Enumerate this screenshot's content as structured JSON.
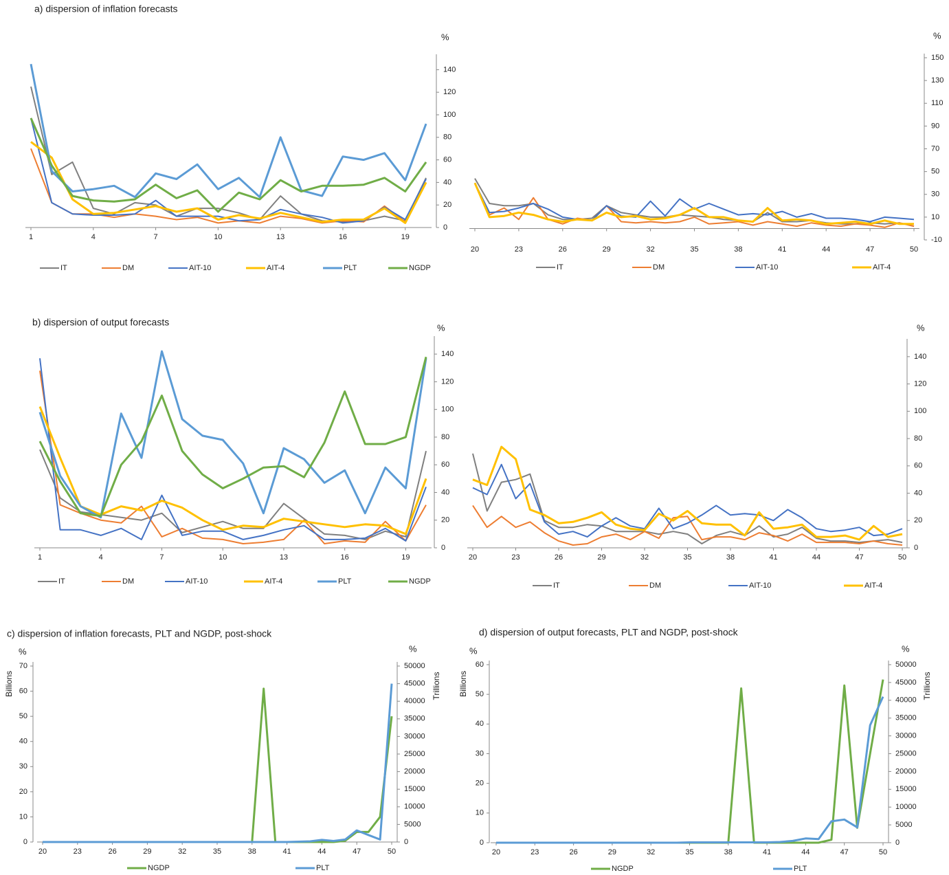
{
  "chart_data": [
    {
      "type": "line",
      "title": "a) dispersion of inflation forecasts",
      "y_unit": "%",
      "x": [
        1,
        2,
        3,
        4,
        5,
        6,
        7,
        8,
        9,
        10,
        11,
        12,
        13,
        14,
        15,
        16,
        17,
        18,
        19,
        20
      ],
      "xticks": [
        1,
        4,
        7,
        10,
        13,
        16,
        19
      ],
      "ylim": [
        0,
        150
      ],
      "yticks": [
        0,
        20,
        40,
        60,
        80,
        100,
        120,
        140
      ],
      "series": [
        {
          "name": "IT",
          "color": "#7f7f7f",
          "values": [
            125,
            47,
            58,
            17,
            12,
            22,
            20,
            10,
            17,
            17,
            13,
            7,
            28,
            12,
            6,
            5,
            6,
            10,
            6,
            44
          ]
        },
        {
          "name": "DM",
          "color": "#ed7d31",
          "values": [
            70,
            22,
            12,
            12,
            9,
            12,
            10,
            7,
            9,
            4,
            6,
            4,
            10,
            8,
            4,
            6,
            5,
            19,
            5,
            40
          ]
        },
        {
          "name": "AIT-10",
          "color": "#4472c4",
          "values": [
            97,
            22,
            12,
            11,
            11,
            12,
            24,
            10,
            10,
            10,
            6,
            7,
            16,
            12,
            9,
            4,
            6,
            18,
            7,
            43
          ]
        },
        {
          "name": "AIT-4",
          "color": "#ffc000",
          "values": [
            76,
            62,
            25,
            12,
            13,
            16,
            19,
            14,
            17,
            7,
            11,
            8,
            13,
            9,
            5,
            7,
            7,
            17,
            4,
            40
          ]
        },
        {
          "name": "PLT",
          "color": "#5b9bd5",
          "values": [
            145,
            50,
            32,
            34,
            37,
            27,
            48,
            43,
            56,
            34,
            44,
            27,
            80,
            33,
            28,
            63,
            60,
            66,
            42,
            92
          ]
        },
        {
          "name": "NGDP",
          "color": "#70ad47",
          "values": [
            97,
            55,
            28,
            24,
            23,
            25,
            38,
            26,
            33,
            14,
            31,
            25,
            42,
            32,
            37,
            37,
            38,
            44,
            32,
            58
          ]
        }
      ]
    },
    {
      "type": "line",
      "y_unit": "%",
      "x": [
        20,
        21,
        22,
        23,
        24,
        25,
        26,
        27,
        28,
        29,
        30,
        31,
        32,
        33,
        34,
        35,
        36,
        37,
        38,
        39,
        40,
        41,
        42,
        43,
        44,
        45,
        46,
        47,
        48,
        49,
        50
      ],
      "xticks": [
        20,
        23,
        26,
        29,
        32,
        35,
        38,
        41,
        44,
        47,
        50
      ],
      "ylim": [
        -10,
        150
      ],
      "yticks": [
        -10,
        10,
        30,
        50,
        70,
        90,
        110,
        130,
        150
      ],
      "series": [
        {
          "name": "IT",
          "color": "#7f7f7f",
          "values": [
            44,
            22,
            20,
            20,
            22,
            12,
            8,
            8,
            9,
            20,
            14,
            12,
            10,
            10,
            12,
            11,
            10,
            8,
            7,
            6,
            14,
            6,
            6,
            7,
            5,
            4,
            4,
            5,
            4,
            5,
            2
          ]
        },
        {
          "name": "DM",
          "color": "#ed7d31",
          "values": [
            40,
            12,
            18,
            8,
            27,
            8,
            4,
            9,
            7,
            20,
            6,
            5,
            6,
            5,
            6,
            10,
            4,
            5,
            6,
            3,
            6,
            4,
            2,
            5,
            3,
            2,
            4,
            3,
            1,
            5,
            2
          ]
        },
        {
          "name": "AIT-10",
          "color": "#4472c4",
          "values": [
            40,
            14,
            15,
            18,
            22,
            17,
            10,
            8,
            7,
            20,
            11,
            10,
            24,
            11,
            26,
            17,
            22,
            17,
            12,
            13,
            12,
            15,
            10,
            13,
            9,
            9,
            8,
            6,
            10,
            9,
            8
          ]
        },
        {
          "name": "AIT-4",
          "color": "#ffc000",
          "values": [
            40,
            10,
            11,
            14,
            12,
            8,
            6,
            8,
            7,
            14,
            10,
            11,
            8,
            9,
            12,
            18,
            10,
            10,
            7,
            6,
            18,
            7,
            8,
            7,
            4,
            5,
            6,
            4,
            7,
            4,
            4
          ]
        }
      ]
    },
    {
      "type": "line",
      "title": "b) dispersion of output forecasts",
      "y_unit": "%",
      "x": [
        1,
        2,
        3,
        4,
        5,
        6,
        7,
        8,
        9,
        10,
        11,
        12,
        13,
        14,
        15,
        16,
        17,
        18,
        19,
        20
      ],
      "xticks": [
        1,
        4,
        7,
        10,
        13,
        16,
        19
      ],
      "ylim": [
        0,
        150
      ],
      "yticks": [
        0,
        20,
        40,
        60,
        80,
        100,
        120,
        140
      ],
      "series": [
        {
          "name": "IT",
          "color": "#7f7f7f",
          "values": [
            71,
            36,
            26,
            24,
            22,
            20,
            25,
            11,
            15,
            19,
            14,
            14,
            32,
            21,
            10,
            9,
            6,
            12,
            8,
            70
          ]
        },
        {
          "name": "DM",
          "color": "#ed7d31",
          "values": [
            128,
            31,
            25,
            20,
            18,
            30,
            8,
            14,
            7,
            6,
            3,
            4,
            6,
            20,
            3,
            5,
            4,
            19,
            5,
            31
          ]
        },
        {
          "name": "AIT-10",
          "color": "#4472c4",
          "values": [
            137,
            13,
            13,
            9,
            14,
            6,
            38,
            9,
            12,
            12,
            6,
            9,
            13,
            16,
            6,
            6,
            7,
            14,
            5,
            44
          ]
        },
        {
          "name": "AIT-4",
          "color": "#ffc000",
          "values": [
            102,
            65,
            30,
            24,
            30,
            27,
            34,
            29,
            20,
            13,
            16,
            15,
            21,
            19,
            17,
            15,
            17,
            16,
            10,
            50
          ]
        },
        {
          "name": "PLT",
          "color": "#5b9bd5",
          "values": [
            98,
            52,
            30,
            22,
            97,
            65,
            142,
            93,
            81,
            78,
            61,
            25,
            72,
            64,
            47,
            56,
            25,
            58,
            43,
            137
          ]
        },
        {
          "name": "NGDP",
          "color": "#70ad47",
          "values": [
            77,
            48,
            25,
            23,
            60,
            77,
            110,
            70,
            53,
            43,
            50,
            58,
            59,
            51,
            76,
            113,
            75,
            75,
            80,
            138
          ]
        }
      ]
    },
    {
      "type": "line",
      "y_unit": "%",
      "x": [
        20,
        21,
        22,
        23,
        24,
        25,
        26,
        27,
        28,
        29,
        30,
        31,
        32,
        33,
        34,
        35,
        36,
        37,
        38,
        39,
        40,
        41,
        42,
        43,
        44,
        45,
        46,
        47,
        48,
        49,
        50
      ],
      "xticks": [
        20,
        23,
        26,
        29,
        32,
        35,
        38,
        41,
        44,
        47,
        50
      ],
      "ylim": [
        0,
        150
      ],
      "yticks": [
        0,
        20,
        40,
        60,
        80,
        100,
        120,
        140
      ],
      "series": [
        {
          "name": "IT",
          "color": "#7f7f7f",
          "values": [
            69,
            27,
            48,
            50,
            54,
            20,
            15,
            15,
            17,
            16,
            12,
            12,
            12,
            10,
            12,
            10,
            3,
            9,
            12,
            9,
            16,
            8,
            10,
            15,
            7,
            5,
            5,
            4,
            5,
            6,
            4
          ]
        },
        {
          "name": "DM",
          "color": "#ed7d31",
          "values": [
            31,
            15,
            23,
            15,
            19,
            11,
            5,
            2,
            3,
            8,
            10,
            6,
            12,
            7,
            22,
            23,
            6,
            8,
            8,
            6,
            11,
            9,
            5,
            10,
            4,
            4,
            4,
            3,
            5,
            3,
            2
          ]
        },
        {
          "name": "AIT-10",
          "color": "#4472c4",
          "values": [
            44,
            39,
            61,
            36,
            47,
            19,
            10,
            12,
            8,
            16,
            22,
            16,
            14,
            29,
            14,
            18,
            24,
            31,
            24,
            25,
            24,
            20,
            28,
            22,
            14,
            12,
            13,
            15,
            9,
            10,
            14
          ]
        },
        {
          "name": "AIT-4",
          "color": "#ffc000",
          "values": [
            50,
            46,
            74,
            65,
            28,
            24,
            18,
            19,
            22,
            26,
            17,
            14,
            13,
            25,
            20,
            27,
            18,
            17,
            17,
            9,
            26,
            14,
            15,
            17,
            8,
            8,
            9,
            6,
            16,
            8,
            10
          ]
        }
      ]
    },
    {
      "type": "line",
      "title": "c) dispersion of  inflation forecasts, PLT and NGDP, post-shock",
      "y_unit": "%",
      "y2_unit": "%",
      "ylabel": "Billions",
      "y2label": "Trillions",
      "x": [
        20,
        21,
        22,
        23,
        24,
        25,
        26,
        27,
        28,
        29,
        30,
        31,
        32,
        33,
        34,
        35,
        36,
        37,
        38,
        39,
        40,
        41,
        42,
        43,
        44,
        45,
        46,
        47,
        48,
        49,
        50
      ],
      "xticks": [
        20,
        23,
        26,
        29,
        32,
        35,
        38,
        41,
        44,
        47,
        50
      ],
      "ylim": [
        0,
        70
      ],
      "yticks": [
        0,
        10,
        20,
        30,
        40,
        50,
        60,
        70
      ],
      "y2lim": [
        0,
        50000
      ],
      "y2ticks": [
        0,
        5000,
        10000,
        15000,
        20000,
        25000,
        30000,
        35000,
        40000,
        45000,
        50000
      ],
      "series": [
        {
          "name": "NGDP",
          "color": "#70ad47",
          "values": [
            0,
            0,
            0,
            0,
            0,
            0,
            0,
            0,
            0,
            0,
            0,
            0,
            0,
            0,
            0,
            0,
            0,
            0,
            0,
            61,
            0,
            0,
            0,
            0,
            0,
            0,
            0.5,
            4,
            4,
            10,
            50
          ]
        },
        {
          "name": "PLT",
          "color": "#5b9bd5",
          "axis": "y2",
          "values": [
            0,
            0,
            0,
            0,
            0,
            0,
            0,
            0,
            0,
            0,
            0,
            0,
            0,
            0,
            0,
            0,
            0,
            0,
            0,
            0,
            0,
            0,
            100,
            200,
            600,
            300,
            700,
            3300,
            2000,
            700,
            45000
          ]
        }
      ]
    },
    {
      "type": "line",
      "title": "d) dispersion of output forecasts, PLT and NGDP, post-shock",
      "y_unit": "%",
      "y2_unit": "%",
      "ylabel": "Billions",
      "y2label": "Trillions",
      "x": [
        20,
        21,
        22,
        23,
        24,
        25,
        26,
        27,
        28,
        29,
        30,
        31,
        32,
        33,
        34,
        35,
        36,
        37,
        38,
        39,
        40,
        41,
        42,
        43,
        44,
        45,
        46,
        47,
        48,
        49,
        50
      ],
      "xticks": [
        20,
        23,
        26,
        29,
        32,
        35,
        38,
        41,
        44,
        47,
        50
      ],
      "ylim": [
        0,
        60
      ],
      "yticks": [
        0,
        10,
        20,
        30,
        40,
        50,
        60
      ],
      "y2lim": [
        0,
        50000
      ],
      "y2ticks": [
        0,
        5000,
        10000,
        15000,
        20000,
        25000,
        30000,
        35000,
        40000,
        45000,
        50000
      ],
      "series": [
        {
          "name": "NGDP",
          "color": "#70ad47",
          "values": [
            0,
            0,
            0,
            0,
            0,
            0,
            0,
            0,
            0,
            0,
            0,
            0,
            0,
            0,
            0,
            0,
            0,
            0,
            0,
            52,
            0,
            0,
            0,
            0,
            0,
            0,
            1,
            53,
            5,
            30,
            55
          ]
        },
        {
          "name": "PLT",
          "color": "#5b9bd5",
          "axis": "y2",
          "values": [
            0,
            0,
            0,
            0,
            0,
            0,
            0,
            0,
            0,
            0,
            0,
            0,
            0,
            0,
            0,
            100,
            100,
            100,
            100,
            100,
            100,
            100,
            200,
            500,
            1200,
            1000,
            6000,
            6500,
            4300,
            33000,
            41000
          ]
        }
      ]
    }
  ]
}
